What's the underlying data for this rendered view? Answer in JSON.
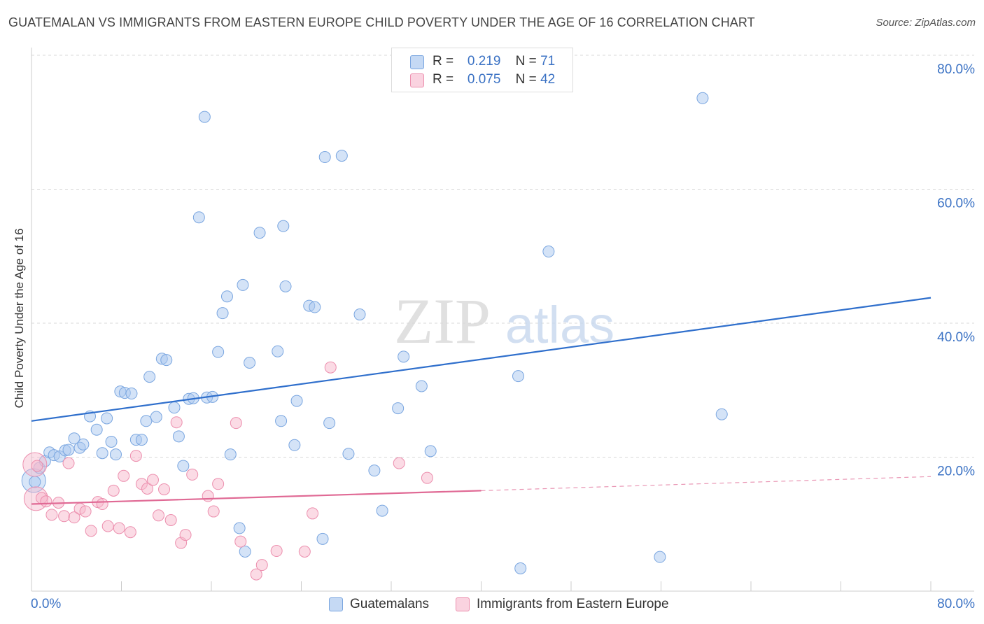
{
  "title": "GUATEMALAN VS IMMIGRANTS FROM EASTERN EUROPE CHILD POVERTY UNDER THE AGE OF 16 CORRELATION CHART",
  "source": "Source: ZipAtlas.com",
  "watermark": {
    "zip": "ZIP",
    "atlas": "atlas"
  },
  "legend_top": [
    {
      "r_label": "R =",
      "r_value": "0.219",
      "n_label": "N =",
      "n_value": "71",
      "color": "#a9c8f0"
    },
    {
      "r_label": "R =",
      "r_value": "0.075",
      "n_label": "N =",
      "n_value": "42",
      "color": "#f7b8cc"
    }
  ],
  "chart_data": {
    "type": "scatter",
    "xlabel": "",
    "ylabel": "Child Poverty Under the Age of 16",
    "xlim": [
      0,
      80
    ],
    "ylim": [
      0,
      80
    ],
    "x_tick_labels": [
      "0.0%",
      "80.0%"
    ],
    "y_tick_labels": [
      "20.0%",
      "40.0%",
      "60.0%",
      "80.0%"
    ],
    "y_ticks": [
      20,
      40,
      60,
      80
    ],
    "grid": "horizontal dashed",
    "legend": "bottom-center",
    "series": [
      {
        "name": "Guatemalans",
        "color": "#a9c8f0",
        "stroke": "#7aa6e0",
        "trend_color": "#2f6fcc",
        "trend": {
          "x": [
            0,
            80
          ],
          "y": [
            25.4,
            43.8
          ]
        },
        "points": [
          [
            0.3,
            16.3
          ],
          [
            0.7,
            18.4
          ],
          [
            1.2,
            19.4
          ],
          [
            1.6,
            20.7
          ],
          [
            2.0,
            20.3
          ],
          [
            2.5,
            20.1
          ],
          [
            3.0,
            21.0
          ],
          [
            3.3,
            21.1
          ],
          [
            3.8,
            22.8
          ],
          [
            4.3,
            21.4
          ],
          [
            4.6,
            21.9
          ],
          [
            5.2,
            26.1
          ],
          [
            5.8,
            24.1
          ],
          [
            6.3,
            20.6
          ],
          [
            6.7,
            25.8
          ],
          [
            7.1,
            22.3
          ],
          [
            7.5,
            20.4
          ],
          [
            7.9,
            29.8
          ],
          [
            8.3,
            29.6
          ],
          [
            8.9,
            29.5
          ],
          [
            9.3,
            22.6
          ],
          [
            9.8,
            22.6
          ],
          [
            10.2,
            25.4
          ],
          [
            10.5,
            32.0
          ],
          [
            11.1,
            26.0
          ],
          [
            11.6,
            34.7
          ],
          [
            12.0,
            34.5
          ],
          [
            12.7,
            27.4
          ],
          [
            13.1,
            23.1
          ],
          [
            13.5,
            18.7
          ],
          [
            14.0,
            28.7
          ],
          [
            14.4,
            28.8
          ],
          [
            14.9,
            55.8
          ],
          [
            15.4,
            70.8
          ],
          [
            15.6,
            28.9
          ],
          [
            16.1,
            29.0
          ],
          [
            16.6,
            35.7
          ],
          [
            17.0,
            41.5
          ],
          [
            17.4,
            44.0
          ],
          [
            17.7,
            20.4
          ],
          [
            18.5,
            9.4
          ],
          [
            18.8,
            45.7
          ],
          [
            19.0,
            5.9
          ],
          [
            19.4,
            34.1
          ],
          [
            20.3,
            53.5
          ],
          [
            21.9,
            35.8
          ],
          [
            22.2,
            25.4
          ],
          [
            22.4,
            54.5
          ],
          [
            22.6,
            45.5
          ],
          [
            23.4,
            21.8
          ],
          [
            23.6,
            28.4
          ],
          [
            24.7,
            42.6
          ],
          [
            25.2,
            42.4
          ],
          [
            25.9,
            7.8
          ],
          [
            26.1,
            64.8
          ],
          [
            26.5,
            25.1
          ],
          [
            27.6,
            65.0
          ],
          [
            28.2,
            20.5
          ],
          [
            29.2,
            41.3
          ],
          [
            30.5,
            18.0
          ],
          [
            31.2,
            12.0
          ],
          [
            32.6,
            27.3
          ],
          [
            33.1,
            35.0
          ],
          [
            34.7,
            30.6
          ],
          [
            35.5,
            20.9
          ],
          [
            43.3,
            32.1
          ],
          [
            43.5,
            3.4
          ],
          [
            46.0,
            50.7
          ],
          [
            55.9,
            5.1
          ],
          [
            59.7,
            73.6
          ],
          [
            61.4,
            26.4
          ]
        ],
        "large_points": [
          [
            0.2,
            16.5
          ]
        ]
      },
      {
        "name": "Immigrants from Eastern Europe",
        "color": "#f7b8cc",
        "stroke": "#ec8fae",
        "trend_color": "#e06a95",
        "trend": {
          "x": [
            0,
            40
          ],
          "y": [
            13.0,
            15.0
          ]
        },
        "trend_dashed": {
          "x": [
            40,
            80
          ],
          "y": [
            15.0,
            17.1
          ]
        },
        "points": [
          [
            0.5,
            18.7
          ],
          [
            0.9,
            13.9
          ],
          [
            1.3,
            13.4
          ],
          [
            1.8,
            11.4
          ],
          [
            2.4,
            13.2
          ],
          [
            2.9,
            11.2
          ],
          [
            3.3,
            19.1
          ],
          [
            3.8,
            11.0
          ],
          [
            4.3,
            12.3
          ],
          [
            4.8,
            11.9
          ],
          [
            5.3,
            9.0
          ],
          [
            5.9,
            13.3
          ],
          [
            6.3,
            13.0
          ],
          [
            6.8,
            9.7
          ],
          [
            7.3,
            15.0
          ],
          [
            7.8,
            9.4
          ],
          [
            8.2,
            17.2
          ],
          [
            8.8,
            8.8
          ],
          [
            9.3,
            20.2
          ],
          [
            9.8,
            16.0
          ],
          [
            10.3,
            15.3
          ],
          [
            10.8,
            16.6
          ],
          [
            11.3,
            11.3
          ],
          [
            11.8,
            15.2
          ],
          [
            12.4,
            10.6
          ],
          [
            12.9,
            25.2
          ],
          [
            13.3,
            7.2
          ],
          [
            13.7,
            8.4
          ],
          [
            14.3,
            17.4
          ],
          [
            15.7,
            14.2
          ],
          [
            16.2,
            11.9
          ],
          [
            16.6,
            16.0
          ],
          [
            18.2,
            25.1
          ],
          [
            18.6,
            7.4
          ],
          [
            20.0,
            2.5
          ],
          [
            20.5,
            3.9
          ],
          [
            21.8,
            6.0
          ],
          [
            24.3,
            5.9
          ],
          [
            25.0,
            11.6
          ],
          [
            26.6,
            33.4
          ],
          [
            32.7,
            19.1
          ],
          [
            35.2,
            16.9
          ]
        ],
        "large_points": [
          [
            0.4,
            13.8
          ],
          [
            0.3,
            18.9
          ]
        ]
      }
    ]
  },
  "legend_bottom": [
    {
      "label": "Guatemalans",
      "color": "#a9c8f0"
    },
    {
      "label": "Immigrants from Eastern Europe",
      "color": "#f7b8cc"
    }
  ]
}
